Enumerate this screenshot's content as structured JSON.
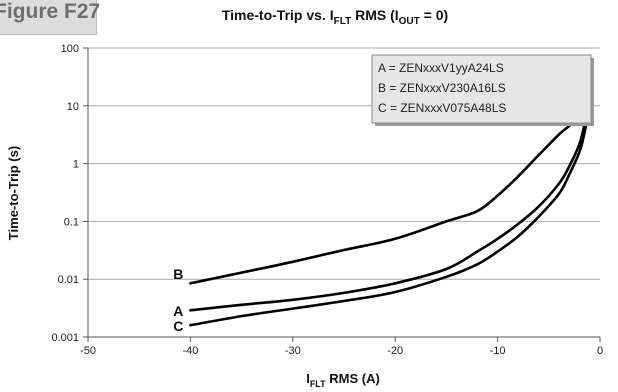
{
  "figure_label": "Figure F27",
  "chart_data": {
    "type": "line",
    "title": {
      "pre": "Time-to-Trip vs. I",
      "pre_sub": "FLT",
      "mid": " RMS (I",
      "mid_sub": "OUT",
      "post": " = 0)"
    },
    "xlabel": {
      "main": "I",
      "sub": "FLT",
      "rest": " RMS (A)"
    },
    "ylabel": "Time-to-Trip (s)",
    "x_scale": "linear",
    "y_scale": "log",
    "xlim": [
      -50,
      0
    ],
    "ylim": [
      0.001,
      100
    ],
    "x_ticks": [
      -50,
      -40,
      -30,
      -20,
      -10,
      0
    ],
    "x_tick_labels": [
      "-50",
      "-40",
      "-30",
      "-20",
      "-10",
      "0"
    ],
    "y_ticks": [
      0.001,
      0.01,
      0.1,
      1,
      10,
      100
    ],
    "y_tick_labels": [
      "0.001",
      "0.01",
      "0.1",
      "1",
      "10",
      "100"
    ],
    "grid": {
      "horizontal": true,
      "vertical": false
    },
    "legend_placement": "top-right",
    "legend": [
      "A = ZENxxxV1yyA24LS",
      "B = ZENxxxV230A16LS",
      "C = ZENxxxV075A48LS"
    ],
    "series": [
      {
        "name": "A",
        "points": [
          [
            -40,
            0.0029
          ],
          [
            -35,
            0.0036
          ],
          [
            -30,
            0.0044
          ],
          [
            -25,
            0.0058
          ],
          [
            -20,
            0.0085
          ],
          [
            -15,
            0.015
          ],
          [
            -12,
            0.03
          ],
          [
            -10,
            0.05
          ],
          [
            -8,
            0.09
          ],
          [
            -6,
            0.18
          ],
          [
            -4,
            0.45
          ],
          [
            -3,
            0.9
          ],
          [
            -2,
            2.2
          ],
          [
            -1.5,
            5
          ],
          [
            -1,
            20
          ]
        ]
      },
      {
        "name": "B",
        "points": [
          [
            -40,
            0.0085
          ],
          [
            -35,
            0.013
          ],
          [
            -30,
            0.02
          ],
          [
            -25,
            0.032
          ],
          [
            -20,
            0.05
          ],
          [
            -15,
            0.1
          ],
          [
            -12,
            0.15
          ],
          [
            -10,
            0.28
          ],
          [
            -8,
            0.6
          ],
          [
            -6,
            1.4
          ],
          [
            -4,
            3.2
          ],
          [
            -3,
            4.5
          ],
          [
            -2,
            7
          ],
          [
            -1.5,
            12
          ],
          [
            -1,
            32
          ]
        ]
      },
      {
        "name": "C",
        "points": [
          [
            -40,
            0.0016
          ],
          [
            -35,
            0.0023
          ],
          [
            -30,
            0.0031
          ],
          [
            -25,
            0.0042
          ],
          [
            -20,
            0.006
          ],
          [
            -15,
            0.011
          ],
          [
            -12,
            0.018
          ],
          [
            -10,
            0.03
          ],
          [
            -8,
            0.055
          ],
          [
            -6,
            0.12
          ],
          [
            -4,
            0.3
          ],
          [
            -3,
            0.65
          ],
          [
            -2,
            1.6
          ],
          [
            -1.5,
            3.5
          ],
          [
            -1,
            10
          ]
        ]
      }
    ]
  }
}
